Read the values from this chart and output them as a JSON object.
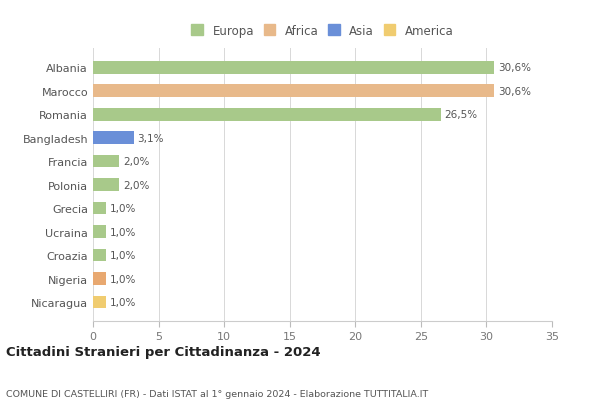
{
  "categories": [
    "Albania",
    "Marocco",
    "Romania",
    "Bangladesh",
    "Francia",
    "Polonia",
    "Grecia",
    "Ucraina",
    "Croazia",
    "Nigeria",
    "Nicaragua"
  ],
  "values": [
    30.6,
    30.6,
    26.5,
    3.1,
    2.0,
    2.0,
    1.0,
    1.0,
    1.0,
    1.0,
    1.0
  ],
  "bar_colors": [
    "#a8c98a",
    "#e8b98a",
    "#a8c98a",
    "#6a8fd8",
    "#a8c98a",
    "#a8c98a",
    "#a8c98a",
    "#a8c98a",
    "#a8c98a",
    "#e8a870",
    "#f0cc70"
  ],
  "labels": [
    "30,6%",
    "30,6%",
    "26,5%",
    "3,1%",
    "2,0%",
    "2,0%",
    "1,0%",
    "1,0%",
    "1,0%",
    "1,0%",
    "1,0%"
  ],
  "legend_labels": [
    "Europa",
    "Africa",
    "Asia",
    "America"
  ],
  "legend_colors": [
    "#a8c98a",
    "#e8b98a",
    "#6a8fd8",
    "#f0cc70"
  ],
  "title": "Cittadini Stranieri per Cittadinanza - 2024",
  "subtitle": "COMUNE DI CASTELLIRI (FR) - Dati ISTAT al 1° gennaio 2024 - Elaborazione TUTTITALIA.IT",
  "xlim": [
    0,
    35
  ],
  "xticks": [
    0,
    5,
    10,
    15,
    20,
    25,
    30,
    35
  ],
  "background_color": "#ffffff",
  "grid_color": "#d8d8d8",
  "bar_height": 0.55
}
